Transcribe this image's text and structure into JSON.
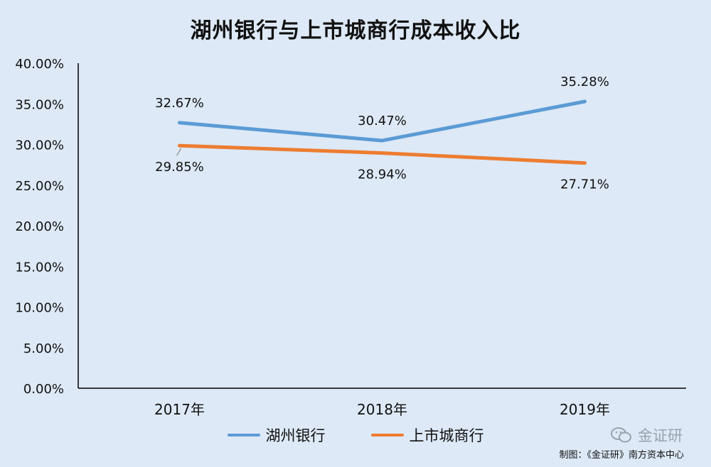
{
  "chart_data": {
    "type": "line",
    "title": "湖州银行与上市城商行成本收入比",
    "categories": [
      "2017年",
      "2018年",
      "2019年"
    ],
    "ylim": [
      0,
      40
    ],
    "yticks": [
      0,
      5,
      10,
      15,
      20,
      25,
      30,
      35,
      40
    ],
    "ytick_labels": [
      "0.00%",
      "5.00%",
      "10.00%",
      "15.00%",
      "20.00%",
      "25.00%",
      "30.00%",
      "35.00%",
      "40.00%"
    ],
    "grid": false,
    "legend_position": "bottom",
    "series": [
      {
        "name": "湖州银行",
        "color": "#5b9bd5",
        "values": [
          32.67,
          30.47,
          35.28
        ],
        "labels": [
          "32.67%",
          "30.47%",
          "35.28%"
        ]
      },
      {
        "name": "上市城商行",
        "color": "#ed7d31",
        "values": [
          29.85,
          28.94,
          27.71
        ],
        "labels": [
          "29.85%",
          "28.94%",
          "27.71%"
        ]
      }
    ]
  },
  "watermark": {
    "text": "金证研",
    "icon": "wechat-icon"
  },
  "credit": "制图：《金证研》南方资本中心"
}
